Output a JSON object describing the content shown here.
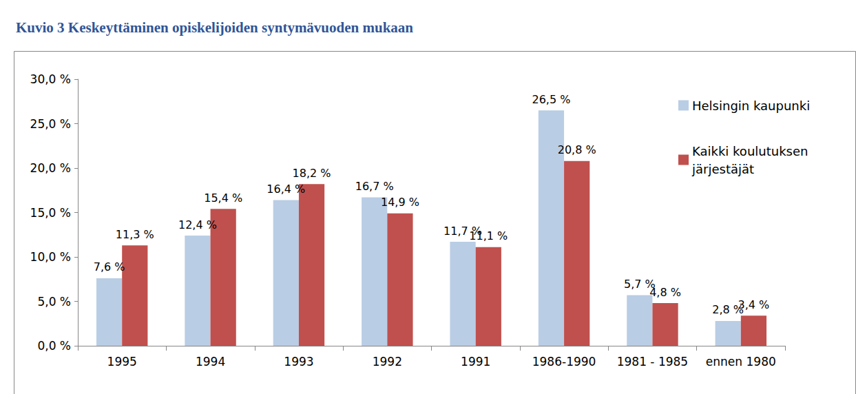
{
  "chart_data": {
    "type": "bar",
    "title": "Kuvio 3 Keskeyttäminen opiskelijoiden syntymävuoden mukaan",
    "categories": [
      "1995",
      "1994",
      "1993",
      "1992",
      "1991",
      "1986-1990",
      "1981 - 1985",
      "ennen 1980"
    ],
    "series": [
      {
        "name": "Helsingin kaupunki",
        "color": "#b9cde5",
        "values": [
          7.6,
          12.4,
          16.4,
          16.7,
          11.7,
          26.5,
          5.7,
          2.8
        ],
        "value_labels": [
          "7,6 %",
          "12,4 %",
          "16,4 %",
          "16,7 %",
          "11,7 %",
          "26,5 %",
          "5,7 %",
          "2,8 %"
        ]
      },
      {
        "name": "Kaikki koulutuksen järjestäjät",
        "color": "#c0504d",
        "values": [
          11.3,
          15.4,
          18.2,
          14.9,
          11.1,
          20.8,
          4.8,
          3.4
        ],
        "value_labels": [
          "11,3 %",
          "15,4 %",
          "18,2 %",
          "14,9 %",
          "11,1 %",
          "20,8 %",
          "4,8 %",
          "3,4 %"
        ]
      }
    ],
    "ylim": [
      0,
      30
    ],
    "yticks": [
      {
        "value": 0,
        "label": "0,0 %"
      },
      {
        "value": 5,
        "label": "5,0 %"
      },
      {
        "value": 10,
        "label": "10,0 %"
      },
      {
        "value": 15,
        "label": "15,0 %"
      },
      {
        "value": 20,
        "label": "20,0 %"
      },
      {
        "value": 25,
        "label": "25,0 %"
      },
      {
        "value": 30,
        "label": "30,0 %"
      }
    ],
    "grid": false,
    "legend": "right",
    "data_labels": true
  }
}
